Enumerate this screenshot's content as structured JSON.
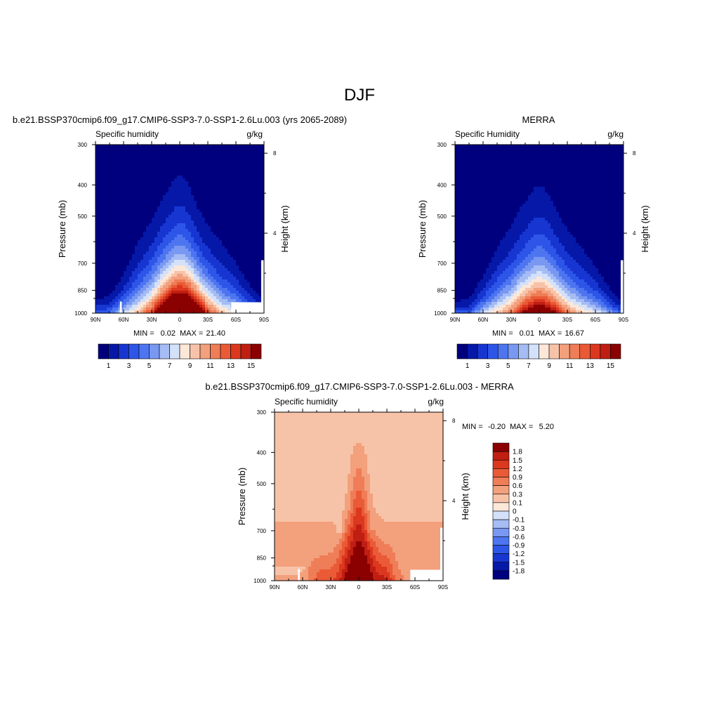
{
  "figure": {
    "title": "DJF"
  },
  "chart_data": [
    {
      "type": "contour",
      "panel": "model",
      "title": "b.e21.BSSP370cmip6.f09_g17.CMIP6-SSP3-7.0-SSP1-2.6Lu.003 (yrs 2065-2089)",
      "left_label": "Specific humidity",
      "right_label": "g/kg",
      "xlabel": "",
      "ylabel": "Pressure (mb)",
      "ylabel_right": "Height (km)",
      "x_ticks": [
        "90N",
        "60N",
        "30N",
        "0",
        "30S",
        "60S",
        "90S"
      ],
      "y_ticks": [
        "300",
        "400",
        "500",
        "700",
        "850",
        "1000"
      ],
      "y_tick_values": [
        300,
        400,
        500,
        700,
        850,
        1000
      ],
      "height_ticks": [
        "8",
        "4"
      ],
      "height_tick_values": [
        8,
        4
      ],
      "xlim": [
        90,
        -90
      ],
      "ylim": [
        1000,
        300
      ],
      "min_label": "MIN =",
      "min_value": "0.02",
      "max_label": "MAX =",
      "max_value": "21.40",
      "profile": {
        "lat": [
          90,
          75,
          60,
          45,
          30,
          20,
          10,
          5,
          0,
          -5,
          -10,
          -20,
          -30,
          -45,
          -60,
          -75,
          -90
        ],
        "pressure_at_0.5": [
          860,
          840,
          690,
          520,
          430,
          370,
          330,
          310,
          300,
          310,
          330,
          400,
          450,
          520,
          620,
          760,
          870
        ],
        "pressure_at_15": [
          1100,
          1100,
          1100,
          1100,
          1020,
          940,
          885,
          870,
          860,
          865,
          880,
          940,
          1020,
          1100,
          1100,
          1100,
          1100
        ]
      },
      "colorbar": {
        "orientation": "horizontal",
        "levels": [
          0,
          1,
          2,
          3,
          4,
          5,
          6,
          7,
          8,
          9,
          10,
          11,
          12,
          13,
          14,
          15,
          16
        ],
        "colors": [
          "#00007f",
          "#0618a8",
          "#1736d1",
          "#2d56e8",
          "#4e75f0",
          "#7898f2",
          "#a5bcf4",
          "#d3e1fa",
          "#fde7d8",
          "#f7c3a8",
          "#f3a07d",
          "#ef7d57",
          "#ea5a36",
          "#db381f",
          "#c01e12",
          "#8b0000"
        ],
        "tick_labels": [
          "1",
          "3",
          "5",
          "7",
          "9",
          "11",
          "13",
          "15"
        ],
        "tick_values": [
          1,
          3,
          5,
          7,
          9,
          11,
          13,
          15
        ]
      }
    },
    {
      "type": "contour",
      "panel": "observation",
      "title": "MERRA",
      "left_label": "Specific Humidity",
      "right_label": "g/kg",
      "xlabel": "",
      "ylabel": "Pressure (mb)",
      "ylabel_right": "Height (km)",
      "x_ticks": [
        "90N",
        "60N",
        "30N",
        "0",
        "30S",
        "60S",
        "90S"
      ],
      "y_ticks": [
        "300",
        "400",
        "500",
        "700",
        "850",
        "1000"
      ],
      "y_tick_values": [
        300,
        400,
        500,
        700,
        850,
        1000
      ],
      "height_ticks": [
        "8",
        "4"
      ],
      "height_tick_values": [
        8,
        4
      ],
      "xlim": [
        90,
        -90
      ],
      "ylim": [
        1000,
        300
      ],
      "min_label": "MIN =",
      "min_value": "0.01",
      "max_label": "MAX =",
      "max_value": "16.67",
      "profile": {
        "lat": [
          90,
          75,
          60,
          45,
          30,
          20,
          10,
          5,
          0,
          -5,
          -10,
          -20,
          -30,
          -45,
          -60,
          -75,
          -90
        ],
        "pressure_at_0.5": [
          880,
          860,
          700,
          540,
          450,
          390,
          350,
          330,
          320,
          330,
          350,
          410,
          460,
          540,
          640,
          780,
          890
        ],
        "pressure_at_15": [
          1100,
          1100,
          1100,
          1100,
          1060,
          1000,
          960,
          950,
          945,
          950,
          960,
          1000,
          1060,
          1100,
          1100,
          1100,
          1100
        ]
      },
      "colorbar": {
        "orientation": "horizontal",
        "levels": [
          0,
          1,
          2,
          3,
          4,
          5,
          6,
          7,
          8,
          9,
          10,
          11,
          12,
          13,
          14,
          15,
          16
        ],
        "colors": [
          "#00007f",
          "#0618a8",
          "#1736d1",
          "#2d56e8",
          "#4e75f0",
          "#7898f2",
          "#a5bcf4",
          "#d3e1fa",
          "#fde7d8",
          "#f7c3a8",
          "#f3a07d",
          "#ef7d57",
          "#ea5a36",
          "#db381f",
          "#c01e12",
          "#8b0000"
        ],
        "tick_labels": [
          "1",
          "3",
          "5",
          "7",
          "9",
          "11",
          "13",
          "15"
        ],
        "tick_values": [
          1,
          3,
          5,
          7,
          9,
          11,
          13,
          15
        ]
      }
    },
    {
      "type": "contour",
      "panel": "difference",
      "title": "b.e21.BSSP370cmip6.f09_g17.CMIP6-SSP3-7.0-SSP1-2.6Lu.003 - MERRA",
      "left_label": "Specific humidity",
      "right_label": "g/kg",
      "xlabel": "",
      "ylabel": "Pressure (mb)",
      "ylabel_right": "Height (km)",
      "x_ticks": [
        "90N",
        "60N",
        "30N",
        "0",
        "30S",
        "60S",
        "90S"
      ],
      "y_ticks": [
        "300",
        "400",
        "500",
        "700",
        "850",
        "1000"
      ],
      "y_tick_values": [
        300,
        400,
        500,
        700,
        850,
        1000
      ],
      "height_ticks": [
        "8",
        "4"
      ],
      "height_tick_values": [
        8,
        4
      ],
      "xlim": [
        90,
        -90
      ],
      "ylim": [
        1000,
        300
      ],
      "min_label": "MIN =",
      "min_value": "-0.20",
      "max_label": "MAX =",
      "max_value": "5.20",
      "colorbar": {
        "orientation": "vertical",
        "levels": [
          -1.95,
          -1.8,
          -1.5,
          -1.2,
          -0.9,
          -0.6,
          -0.3,
          -0.1,
          0,
          0.1,
          0.3,
          0.6,
          0.9,
          1.2,
          1.5,
          1.8,
          1.95
        ],
        "colors": [
          "#00007f",
          "#0618a8",
          "#1736d1",
          "#2d56e8",
          "#4e75f0",
          "#7898f2",
          "#a5bcf4",
          "#d3e1fa",
          "#fde7d8",
          "#f7c3a8",
          "#f3a07d",
          "#ef7d57",
          "#ea5a36",
          "#db381f",
          "#c01e12",
          "#8b0000"
        ],
        "tick_labels": [
          "1.8",
          "1.5",
          "1.2",
          "0.9",
          "0.6",
          "0.3",
          "0.1",
          "0",
          "-0.1",
          "-0.3",
          "-0.6",
          "-0.9",
          "-1.2",
          "-1.5",
          "-1.8"
        ],
        "tick_values": [
          1.8,
          1.5,
          1.2,
          0.9,
          0.6,
          0.3,
          0.1,
          0,
          -0.1,
          -0.3,
          -0.6,
          -0.9,
          -1.2,
          -1.5,
          -1.8
        ]
      }
    }
  ]
}
